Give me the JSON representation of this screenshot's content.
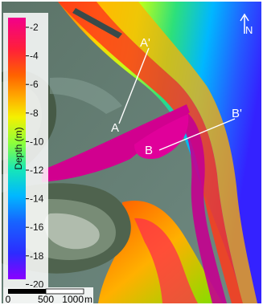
{
  "legend": {
    "title": "Depth (m)",
    "ticks": [
      "-2",
      "-4",
      "-6",
      "-8",
      "-10",
      "-12",
      "-14",
      "-16",
      "-18",
      "-20"
    ],
    "colors": [
      "#7b00ff",
      "#2c33ff",
      "#00a7ff",
      "#00e3c6",
      "#5cff2a",
      "#ffff00",
      "#ff9a00",
      "#ff3000",
      "#ff2f6a",
      "#d2008f"
    ]
  },
  "labels": {
    "a": "A",
    "a_prime": "A'",
    "b": "B",
    "b_prime": "B'"
  },
  "north": {
    "label": "N",
    "icon": "north-arrow-icon"
  },
  "scale_bar": {
    "labels": [
      "0",
      "500",
      "1000"
    ],
    "unit": "m"
  }
}
